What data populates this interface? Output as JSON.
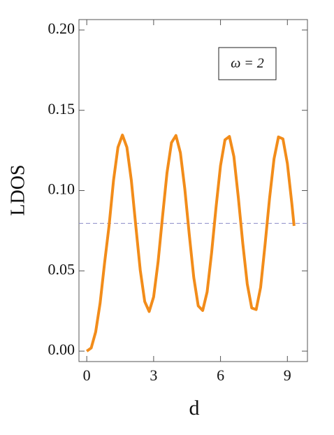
{
  "chart_data": {
    "type": "line",
    "xlabel": "d",
    "ylabel": "LDOS",
    "annotation": "ω = 2",
    "x": [
      0,
      0.2,
      0.4,
      0.6,
      0.8,
      1.0,
      1.2,
      1.4,
      1.6,
      1.8,
      2.0,
      2.2,
      2.4,
      2.6,
      2.8,
      3.0,
      3.2,
      3.4,
      3.6,
      3.8,
      4.0,
      4.2,
      4.4,
      4.6,
      4.8,
      5.0,
      5.2,
      5.4,
      5.6,
      5.8,
      6.0,
      6.2,
      6.4,
      6.6,
      6.8,
      7.0,
      7.2,
      7.4,
      7.6,
      7.8,
      8.0,
      8.2,
      8.4,
      8.6,
      8.8,
      9.0,
      9.2,
      9.3
    ],
    "series": [
      {
        "color": "#f28c1a",
        "values": [
          0,
          0.002,
          0.012,
          0.03,
          0.055,
          0.078,
          0.1063,
          0.127,
          0.1346,
          0.127,
          0.1063,
          0.078,
          0.0504,
          0.0309,
          0.0247,
          0.0338,
          0.0556,
          0.0839,
          0.1111,
          0.1298,
          0.1343,
          0.1236,
          0.1008,
          0.0724,
          0.0459,
          0.0282,
          0.0253,
          0.0369,
          0.0612,
          0.0897,
          0.1155,
          0.1316,
          0.1337,
          0.1212,
          0.0956,
          0.067,
          0.0418,
          0.0269,
          0.0259,
          0.0398,
          0.0666,
          0.0952,
          0.1197,
          0.1334,
          0.1322,
          0.1168,
          0.0919,
          0.078
        ]
      }
    ],
    "reference_line": {
      "value": 0.0796,
      "color": "#8c8cc8"
    },
    "xlim": [
      -0.35,
      9.9
    ],
    "ylim": [
      -0.0065,
      0.2065
    ],
    "xticks": [
      0,
      3,
      6,
      9
    ],
    "yticks": [
      {
        "value": 0,
        "label": "0.00"
      },
      {
        "value": 0.05,
        "label": "0.05"
      },
      {
        "value": 0.1,
        "label": "0.10"
      },
      {
        "value": 0.15,
        "label": "0.15"
      },
      {
        "value": 0.2,
        "label": "0.20"
      }
    ]
  }
}
